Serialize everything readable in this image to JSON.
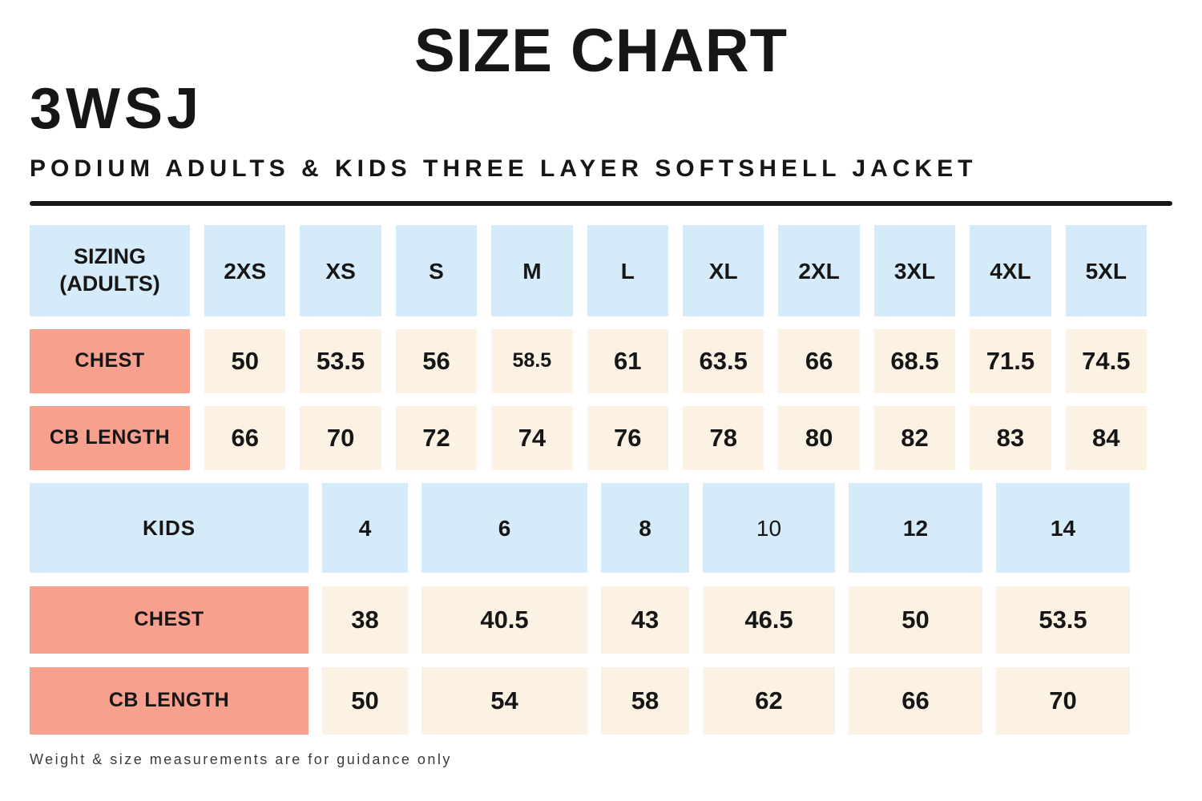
{
  "header": {
    "title": "SIZE CHART",
    "product_code": "3WSJ",
    "product_name": "PODIUM ADULTS & KIDS THREE LAYER SOFTSHELL JACKET"
  },
  "adults": {
    "header": [
      "SIZING (ADULTS)",
      "2XS",
      "XS",
      "S",
      "M",
      "L",
      "XL",
      "2XL",
      "3XL",
      "4XL",
      "5XL"
    ],
    "rows": [
      {
        "label": "CHEST",
        "values": [
          "50",
          "53.5",
          "56",
          "58.5",
          "61",
          "63.5",
          "66",
          "68.5",
          "71.5",
          "74.5"
        ]
      },
      {
        "label": "CB LENGTH",
        "values": [
          "66",
          "70",
          "72",
          "74",
          "76",
          "78",
          "80",
          "82",
          "83",
          "84"
        ]
      }
    ]
  },
  "kids": {
    "header": [
      "KIDS",
      "4",
      "6",
      "8",
      "10",
      "12",
      "14"
    ],
    "rows": [
      {
        "label": "CHEST",
        "values": [
          "38",
          "40.5",
          "43",
          "46.5",
          "50",
          "53.5"
        ]
      },
      {
        "label": "CB LENGTH",
        "values": [
          "50",
          "54",
          "58",
          "62",
          "66",
          "70"
        ]
      }
    ]
  },
  "footer": {
    "note": "Weight & size measurements are for guidance only"
  },
  "colors": {
    "header_blue": "#d6ebf9",
    "label_salmon": "#f7a08e",
    "value_cream": "#fcf2e3",
    "text_black": "#161616",
    "footer_gray": "#3b3b3b"
  }
}
